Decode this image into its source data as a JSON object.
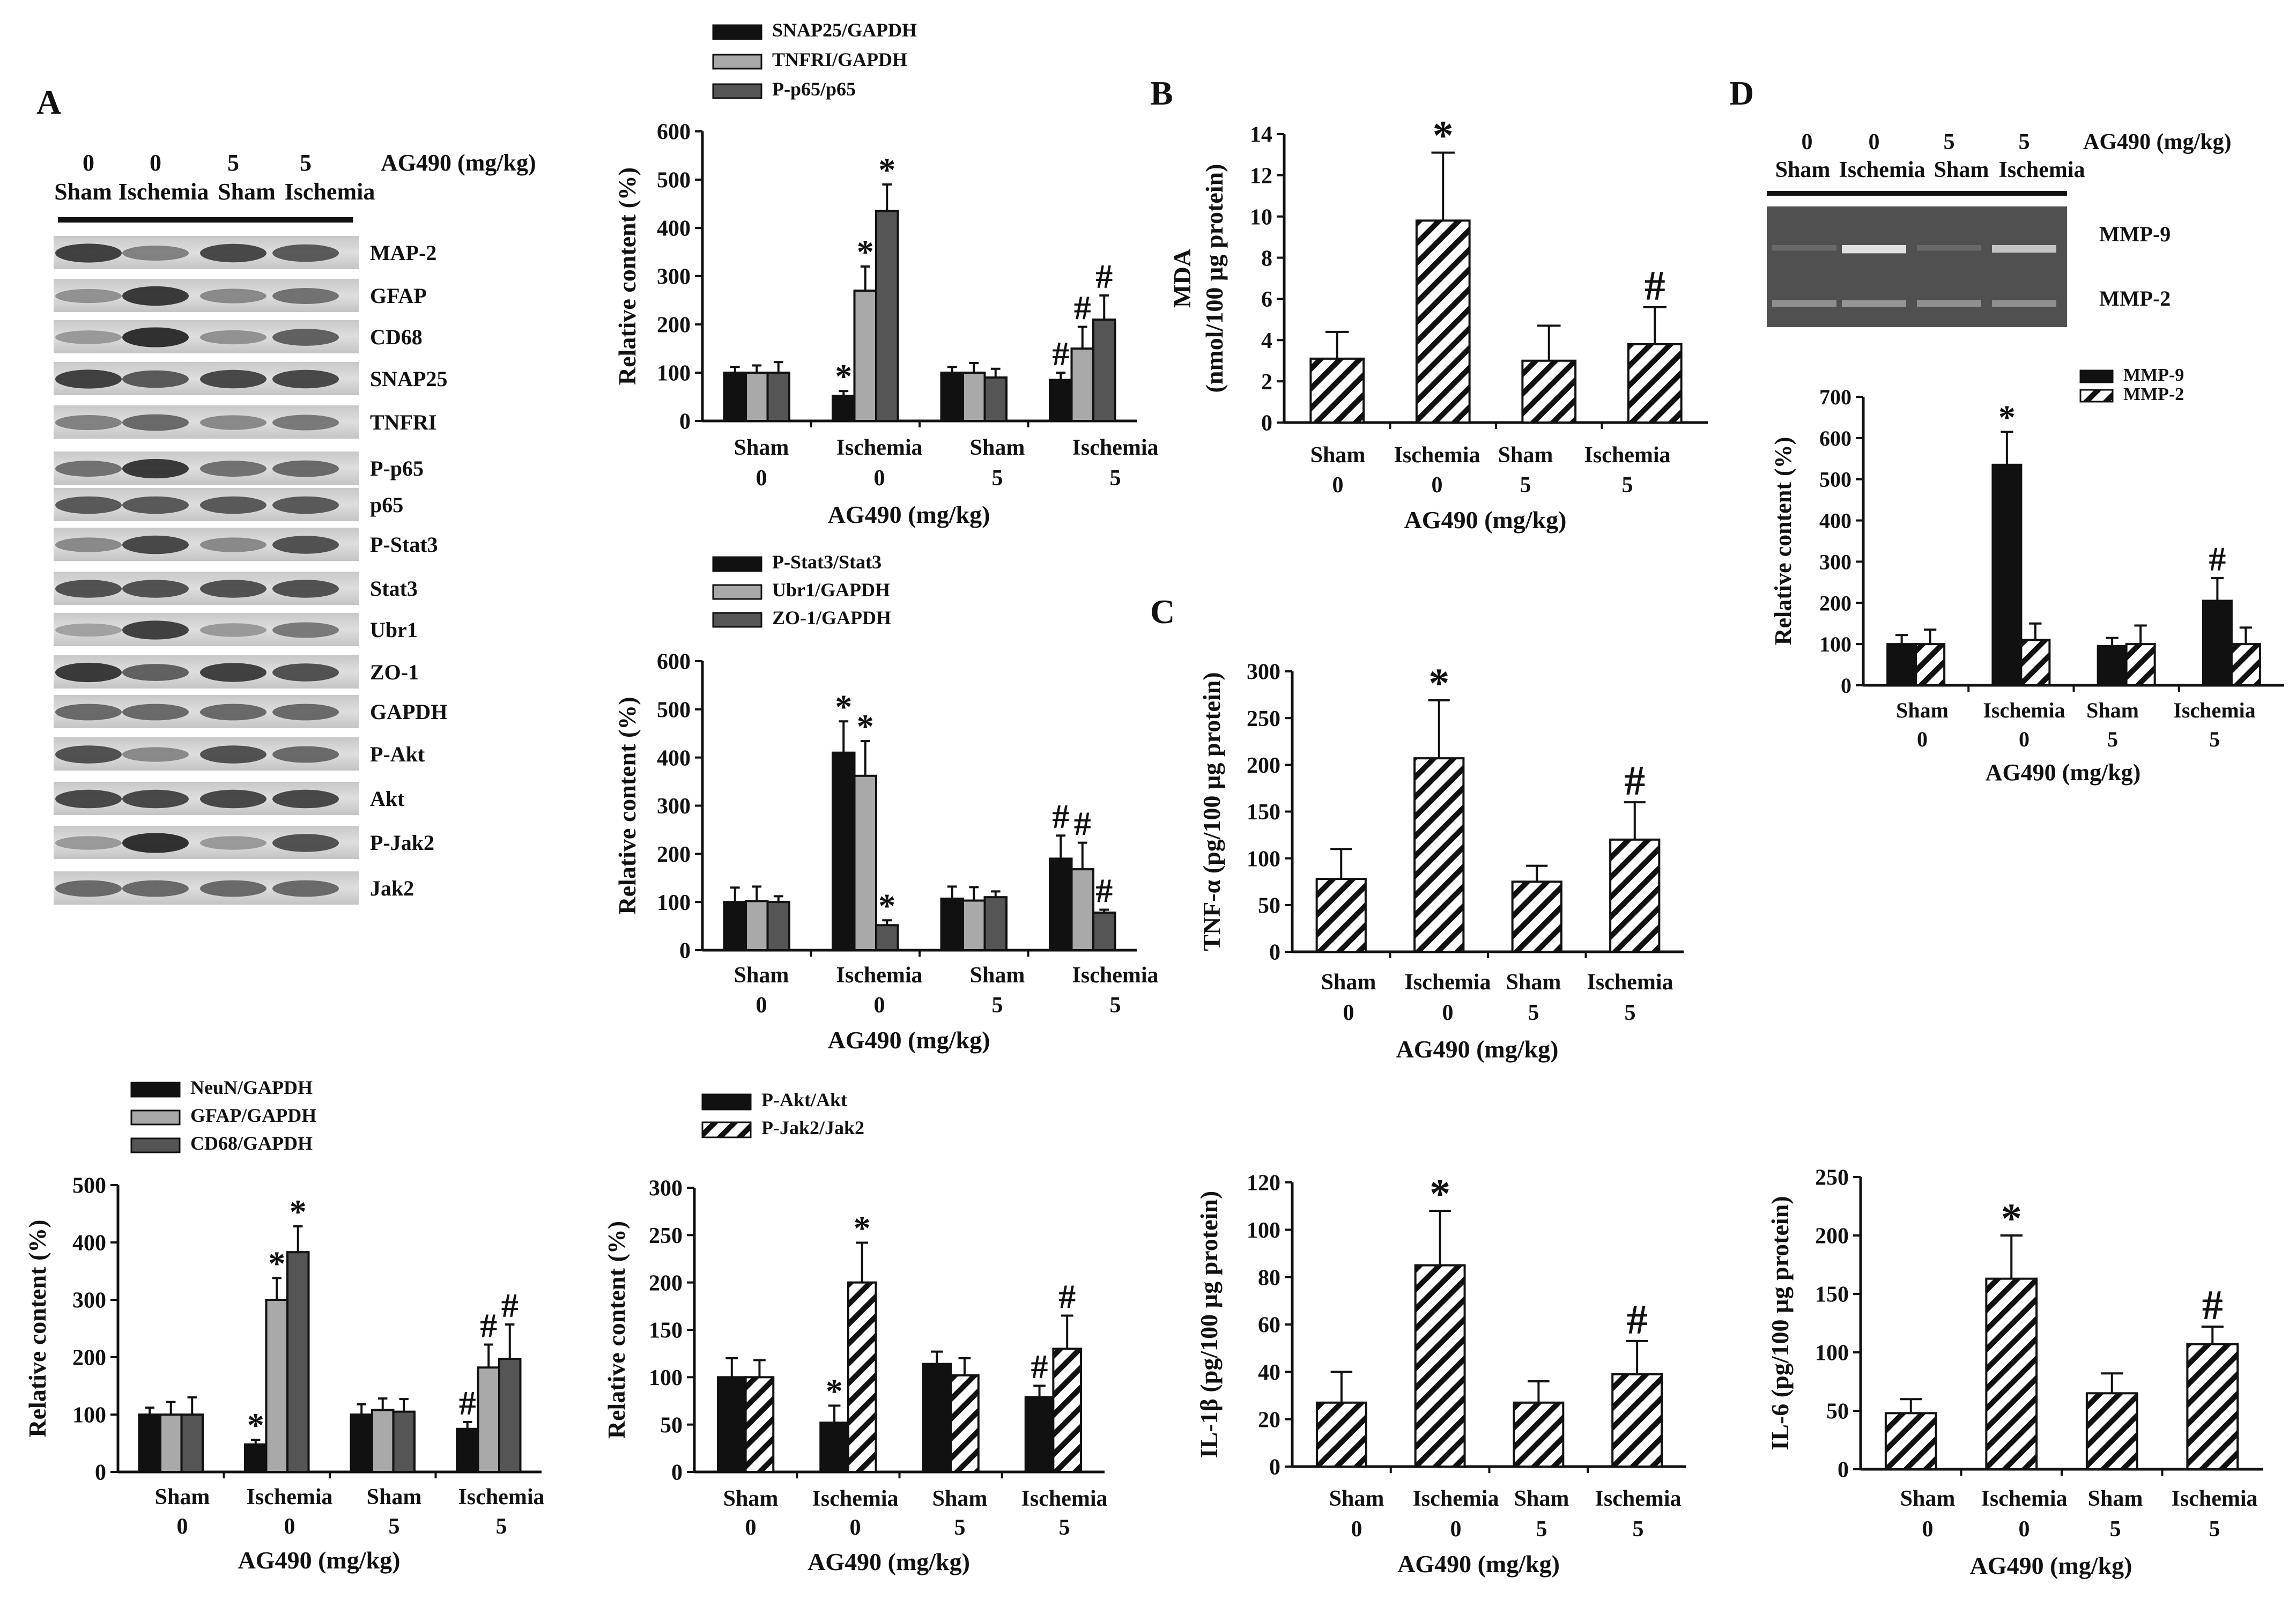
{
  "panel_letters": {
    "A": "A",
    "B": "B",
    "C": "C",
    "D": "D"
  },
  "colors": {
    "ink": "#111111",
    "black_bar": "#111111",
    "light_bar": "#a9a9a9",
    "dark_bar": "#555555",
    "blot_bg": "#d6d6d6",
    "gel_bg": "#505050"
  },
  "blot": {
    "doses": [
      "0",
      "0",
      "5",
      "5"
    ],
    "dose_unit": "AG490 (mg/kg)",
    "groups": [
      "Sham",
      "Ischemia",
      "Sham",
      "Ischemia"
    ],
    "bands": [
      "MAP-2",
      "GFAP",
      "CD68",
      "SNAP25",
      "TNFRI",
      "P-p65",
      "p65",
      "P-Stat3",
      "Stat3",
      "Ubr1",
      "ZO-1",
      "GAPDH",
      "P-Akt",
      "Akt",
      "P-Jak2",
      "Jak2"
    ],
    "intensity": [
      [
        0.85,
        0.45,
        0.8,
        0.7
      ],
      [
        0.35,
        0.9,
        0.4,
        0.55
      ],
      [
        0.3,
        0.95,
        0.35,
        0.65
      ],
      [
        0.85,
        0.7,
        0.8,
        0.8
      ],
      [
        0.45,
        0.6,
        0.4,
        0.5
      ],
      [
        0.55,
        0.9,
        0.55,
        0.6
      ],
      [
        0.7,
        0.7,
        0.7,
        0.7
      ],
      [
        0.4,
        0.8,
        0.4,
        0.75
      ],
      [
        0.75,
        0.75,
        0.75,
        0.75
      ],
      [
        0.25,
        0.85,
        0.3,
        0.5
      ],
      [
        0.9,
        0.65,
        0.85,
        0.75
      ],
      [
        0.6,
        0.6,
        0.6,
        0.6
      ],
      [
        0.75,
        0.4,
        0.75,
        0.6
      ],
      [
        0.8,
        0.8,
        0.8,
        0.8
      ],
      [
        0.3,
        0.95,
        0.3,
        0.75
      ],
      [
        0.6,
        0.6,
        0.6,
        0.6
      ]
    ]
  },
  "gel": {
    "doses": [
      "0",
      "0",
      "5",
      "5"
    ],
    "dose_unit": "AG490 (mg/kg)",
    "groups": [
      "Sham",
      "Ischemia",
      "Sham",
      "Ischemia"
    ],
    "bands": [
      "MMP-9",
      "MMP-2"
    ],
    "intensity": [
      [
        0.1,
        0.9,
        0.1,
        0.7
      ],
      [
        0.35,
        0.4,
        0.35,
        0.35
      ]
    ]
  },
  "chart_data": [
    {
      "id": "a1",
      "type": "bar",
      "legend": [
        "SNAP25/GAPDH",
        "TNFRI/GAPDH",
        "P-p65/p65"
      ],
      "fills": [
        "black",
        "light",
        "dark"
      ],
      "categories": [
        "Sham",
        "Ischemia",
        "Sham",
        "Ischemia"
      ],
      "doses": [
        "0",
        "0",
        "5",
        "5"
      ],
      "xlabel": "AG490 (mg/kg)",
      "ylabel": "Relative content (%)",
      "ylim": [
        0,
        600
      ],
      "yticks": [
        "0",
        "100",
        "200",
        "300",
        "400",
        "500",
        "600"
      ],
      "series": [
        {
          "name": "SNAP25/GAPDH",
          "values": [
            100,
            52,
            100,
            85
          ],
          "errors": [
            12,
            10,
            12,
            15
          ],
          "marks": [
            "",
            "*",
            "",
            "#"
          ]
        },
        {
          "name": "TNFRI/GAPDH",
          "values": [
            100,
            270,
            100,
            150
          ],
          "errors": [
            15,
            50,
            20,
            45
          ],
          "marks": [
            "",
            "*",
            "",
            "#"
          ]
        },
        {
          "name": "P-p65/p65",
          "values": [
            100,
            435,
            90,
            210
          ],
          "errors": [
            22,
            55,
            18,
            50
          ],
          "marks": [
            "",
            "*",
            "",
            "#"
          ]
        }
      ]
    },
    {
      "id": "a2",
      "type": "bar",
      "legend": [
        "P-Stat3/Stat3",
        "Ubr1/GAPDH",
        "ZO-1/GAPDH"
      ],
      "fills": [
        "black",
        "light",
        "dark"
      ],
      "categories": [
        "Sham",
        "Ischemia",
        "Sham",
        "Ischemia"
      ],
      "doses": [
        "0",
        "0",
        "5",
        "5"
      ],
      "xlabel": "AG490 (mg/kg)",
      "ylabel": "Relative content (%)",
      "ylim": [
        0,
        600
      ],
      "yticks": [
        "0",
        "100",
        "200",
        "300",
        "400",
        "500",
        "600"
      ],
      "series": [
        {
          "name": "P-Stat3/Stat3",
          "values": [
            100,
            410,
            107,
            190
          ],
          "errors": [
            30,
            65,
            25,
            48
          ],
          "marks": [
            "",
            "*",
            "",
            "#"
          ]
        },
        {
          "name": "Ubr1/GAPDH",
          "values": [
            102,
            362,
            103,
            168
          ],
          "errors": [
            30,
            72,
            28,
            55
          ],
          "marks": [
            "",
            "*",
            "",
            "#"
          ]
        },
        {
          "name": "ZO-1/GAPDH",
          "values": [
            100,
            52,
            110,
            78
          ],
          "errors": [
            12,
            10,
            12,
            6
          ],
          "marks": [
            "",
            "*",
            "",
            "#"
          ]
        }
      ]
    },
    {
      "id": "a3",
      "type": "bar",
      "legend": [
        "NeuN/GAPDH",
        "GFAP/GAPDH",
        "CD68/GAPDH"
      ],
      "fills": [
        "black",
        "light",
        "dark"
      ],
      "categories": [
        "Sham",
        "Ischemia",
        "Sham",
        "Ischemia"
      ],
      "doses": [
        "0",
        "0",
        "5",
        "5"
      ],
      "xlabel": "AG490 (mg/kg)",
      "ylabel": "Relative content (%)",
      "ylim": [
        0,
        500
      ],
      "yticks": [
        "0",
        "100",
        "200",
        "300",
        "400",
        "500"
      ],
      "series": [
        {
          "name": "NeuN/GAPDH",
          "values": [
            100,
            48,
            100,
            75
          ],
          "errors": [
            12,
            8,
            18,
            12
          ],
          "marks": [
            "",
            "*",
            "",
            "#"
          ]
        },
        {
          "name": "GFAP/GAPDH",
          "values": [
            100,
            300,
            108,
            182
          ],
          "errors": [
            22,
            38,
            20,
            40
          ],
          "marks": [
            "",
            "*",
            "",
            "#"
          ]
        },
        {
          "name": "CD68/GAPDH",
          "values": [
            100,
            383,
            105,
            197
          ],
          "errors": [
            30,
            45,
            22,
            60
          ],
          "marks": [
            "",
            "*",
            "",
            "#"
          ]
        }
      ]
    },
    {
      "id": "a4",
      "type": "bar",
      "legend": [
        "P-Akt/Akt",
        "P-Jak2/Jak2"
      ],
      "fills": [
        "black",
        "hatch"
      ],
      "categories": [
        "Sham",
        "Ischemia",
        "Sham",
        "Ischemia"
      ],
      "doses": [
        "0",
        "0",
        "5",
        "5"
      ],
      "xlabel": "AG490 (mg/kg)",
      "ylabel": "Relative content (%)",
      "ylim": [
        0,
        300
      ],
      "yticks": [
        "0",
        "50",
        "100",
        "150",
        "200",
        "250",
        "300"
      ],
      "series": [
        {
          "name": "P-Akt/Akt",
          "values": [
            100,
            52,
            114,
            79
          ],
          "errors": [
            20,
            18,
            13,
            12
          ],
          "marks": [
            "",
            "*",
            "",
            "#"
          ]
        },
        {
          "name": "P-Jak2/Jak2",
          "values": [
            100,
            200,
            102,
            130
          ],
          "errors": [
            18,
            42,
            18,
            35
          ],
          "marks": [
            "",
            "*",
            "",
            "#"
          ]
        }
      ]
    },
    {
      "id": "b",
      "type": "bar",
      "legend": [],
      "fills": [
        "hatch"
      ],
      "categories": [
        "Sham",
        "Ischemia",
        "Sham",
        "Ischemia"
      ],
      "doses": [
        "0",
        "0",
        "5",
        "5"
      ],
      "xlabel": "AG490 (mg/kg)",
      "ylabel": "MDA",
      "ylabel2": "(nmol/100 µg protein)",
      "ylim": [
        0,
        14
      ],
      "yticks": [
        "0",
        "2",
        "4",
        "6",
        "8",
        "10",
        "12",
        "14"
      ],
      "series": [
        {
          "name": "MDA",
          "values": [
            3.1,
            9.8,
            3.0,
            3.8
          ],
          "errors": [
            1.3,
            3.3,
            1.7,
            1.8
          ],
          "marks": [
            "",
            "*",
            "",
            "#"
          ]
        }
      ]
    },
    {
      "id": "c1",
      "type": "bar",
      "legend": [],
      "fills": [
        "hatch"
      ],
      "categories": [
        "Sham",
        "Ischemia",
        "Sham",
        "Ischemia"
      ],
      "doses": [
        "0",
        "0",
        "5",
        "5"
      ],
      "xlabel": "AG490 (mg/kg)",
      "ylabel": "TNF-α (pg/100 µg protein)",
      "ylim": [
        0,
        300
      ],
      "yticks": [
        "0",
        "50",
        "100",
        "150",
        "200",
        "250",
        "300"
      ],
      "series": [
        {
          "name": "TNF-α",
          "values": [
            78,
            207,
            75,
            120
          ],
          "errors": [
            32,
            62,
            17,
            40
          ],
          "marks": [
            "",
            "*",
            "",
            "#"
          ]
        }
      ]
    },
    {
      "id": "c2",
      "type": "bar",
      "legend": [],
      "fills": [
        "hatch"
      ],
      "categories": [
        "Sham",
        "Ischemia",
        "Sham",
        "Ischemia"
      ],
      "doses": [
        "0",
        "0",
        "5",
        "5"
      ],
      "xlabel": "AG490 (mg/kg)",
      "ylabel": "IL-1β (pg/100 µg protein)",
      "ylim": [
        0,
        120
      ],
      "yticks": [
        "0",
        "20",
        "40",
        "60",
        "80",
        "100",
        "120"
      ],
      "series": [
        {
          "name": "IL-1β",
          "values": [
            27,
            85,
            27,
            39
          ],
          "errors": [
            13,
            23,
            9,
            14
          ],
          "marks": [
            "",
            "*",
            "",
            "#"
          ]
        }
      ]
    },
    {
      "id": "d1",
      "type": "bar",
      "legend": [
        "MMP-9",
        "MMP-2"
      ],
      "fills": [
        "black",
        "hatch"
      ],
      "categories": [
        "Sham",
        "Ischemia",
        "Sham",
        "Ischemia"
      ],
      "doses": [
        "0",
        "0",
        "5",
        "5"
      ],
      "xlabel": "AG490 (mg/kg)",
      "ylabel": "Relative content (%)",
      "ylim": [
        0,
        700
      ],
      "yticks": [
        "0",
        "100",
        "200",
        "300",
        "400",
        "500",
        "600",
        "700"
      ],
      "series": [
        {
          "name": "MMP-9",
          "values": [
            100,
            535,
            95,
            205
          ],
          "errors": [
            22,
            80,
            20,
            55
          ],
          "marks": [
            "",
            "*",
            "",
            "#"
          ]
        },
        {
          "name": "MMP-2",
          "values": [
            100,
            110,
            100,
            100
          ],
          "errors": [
            35,
            40,
            45,
            40
          ],
          "marks": [
            "",
            "",
            "",
            ""
          ]
        }
      ]
    },
    {
      "id": "d2",
      "type": "bar",
      "legend": [],
      "fills": [
        "hatch"
      ],
      "categories": [
        "Sham",
        "Ischemia",
        "Sham",
        "Ischemia"
      ],
      "doses": [
        "0",
        "0",
        "5",
        "5"
      ],
      "xlabel": "AG490 (mg/kg)",
      "ylabel": "IL-6 (pg/100 µg protein)",
      "ylim": [
        0,
        250
      ],
      "yticks": [
        "0",
        "50",
        "100",
        "150",
        "200",
        "250"
      ],
      "series": [
        {
          "name": "IL-6",
          "values": [
            48,
            163,
            65,
            107
          ],
          "errors": [
            12,
            37,
            17,
            15
          ],
          "marks": [
            "",
            "*",
            "",
            "#"
          ]
        }
      ]
    }
  ]
}
